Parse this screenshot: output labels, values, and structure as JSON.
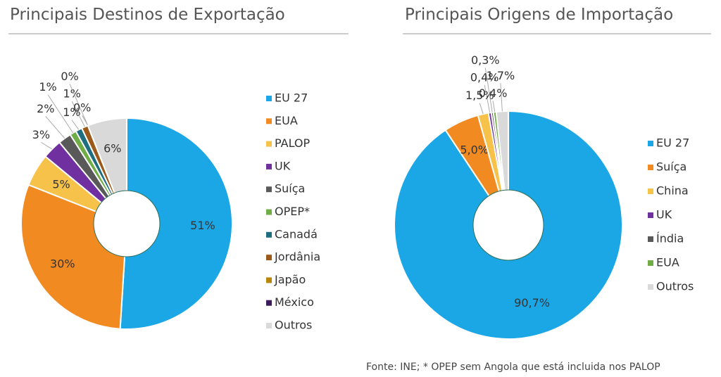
{
  "chart_data": [
    {
      "type": "donut",
      "title": "Principais Destinos de Exportação",
      "categories": [
        "EU 27",
        "EUA",
        "PALOP",
        "UK",
        "Suíça",
        "OPEP*",
        "Canadá",
        "Jordânia",
        "Japão",
        "México",
        "Outros"
      ],
      "values": [
        51,
        30,
        5,
        3,
        2,
        1,
        1,
        1,
        0,
        0,
        6
      ],
      "value_labels": [
        "51%",
        "30%",
        "5%",
        "3%",
        "2%",
        "1%",
        "1%",
        "1%",
        "0%",
        "0%",
        "6%"
      ],
      "colors": [
        "#1ba7e6",
        "#f28a22",
        "#f7c24a",
        "#7030a0",
        "#595959",
        "#70ad47",
        "#1f6e80",
        "#9c5a1a",
        "#b8860b",
        "#3d1a5c",
        "#d9d9d9"
      ]
    },
    {
      "type": "donut",
      "title": "Principais Origens de Importação",
      "categories": [
        "EU 27",
        "Suíça",
        "China",
        "UK",
        "Índia",
        "EUA",
        "Outros"
      ],
      "values": [
        90.7,
        5.0,
        1.5,
        0.4,
        0.3,
        0.4,
        1.7
      ],
      "value_labels": [
        "90,7%",
        "5,0%",
        "1,5%",
        "0,4%",
        "0,3%",
        "0,4%",
        "1,7%"
      ],
      "colors": [
        "#1ba7e6",
        "#f28a22",
        "#f7c24a",
        "#7030a0",
        "#595959",
        "#70ad47",
        "#d9d9d9"
      ]
    }
  ],
  "footnote": "Fonte: INE; * OPEP sem Angola que está incluida nos PALOP"
}
